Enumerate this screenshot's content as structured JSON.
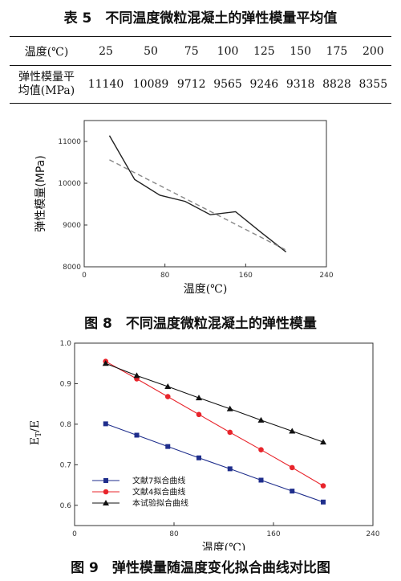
{
  "table": {
    "caption": "表 5　不同温度微粒混凝土的弹性模量平均值",
    "row1_label": "温度(℃)",
    "row2_label_line1": "弹性模量平",
    "row2_label_line2": "均值(MPa)",
    "temperatures": [
      "25",
      "50",
      "75",
      "100",
      "125",
      "150",
      "175",
      "200"
    ],
    "moduli": [
      "11140",
      "10089",
      "9712",
      "9565",
      "9246",
      "9318",
      "8828",
      "8355"
    ]
  },
  "chart_data": [
    {
      "type": "line",
      "caption": "图 8　不同温度微粒混凝土的弹性模量",
      "xlabel": "温度(℃)",
      "ylabel": "弹性模量(MPa)",
      "xlim": [
        0,
        240
      ],
      "ylim": [
        8000,
        11500
      ],
      "xticks": [
        "0",
        "80",
        "160",
        "240"
      ],
      "yticks": [
        "8000",
        "9000",
        "10000",
        "11000"
      ],
      "series": [
        {
          "x": [
            25,
            50,
            75,
            100,
            125,
            150,
            175,
            200
          ],
          "values": [
            11140,
            10089,
            9712,
            9565,
            9246,
            9318,
            8828,
            8355
          ],
          "color": "#222222",
          "dashed": false
        },
        {
          "x": [
            25,
            200
          ],
          "values": [
            10560,
            8400
          ],
          "color": "#888888",
          "dashed": true
        }
      ],
      "grid": false
    },
    {
      "type": "line",
      "caption": "图 9　弹性模量随温度变化拟合曲线对比图",
      "xlabel": "温度(℃)",
      "ylabel_main": "E",
      "ylabel_sub": "T",
      "ylabel_tail": "/E",
      "xlim": [
        0,
        240
      ],
      "ylim": [
        0.55,
        1.0
      ],
      "xticks": [
        "0",
        "80",
        "160",
        "240"
      ],
      "yticks": [
        "0.6",
        "0.7",
        "0.8",
        "0.9",
        "1.0"
      ],
      "x": [
        25,
        50,
        75,
        100,
        125,
        150,
        175,
        200
      ],
      "series": [
        {
          "name": "文献7拟合曲线",
          "marker": "square",
          "color": "#1f2e8c",
          "values": [
            0.801,
            0.773,
            0.745,
            0.717,
            0.69,
            0.662,
            0.635,
            0.608
          ]
        },
        {
          "name": "文献4拟合曲线",
          "marker": "circle",
          "color": "#e8242b",
          "values": [
            0.955,
            0.912,
            0.868,
            0.824,
            0.78,
            0.737,
            0.693,
            0.648
          ]
        },
        {
          "name": "本试验拟合曲线",
          "marker": "triangle",
          "color": "#111111",
          "values": [
            0.95,
            0.92,
            0.893,
            0.865,
            0.838,
            0.81,
            0.783,
            0.756
          ]
        }
      ],
      "legend_position": "bottom-left",
      "grid": false
    }
  ]
}
